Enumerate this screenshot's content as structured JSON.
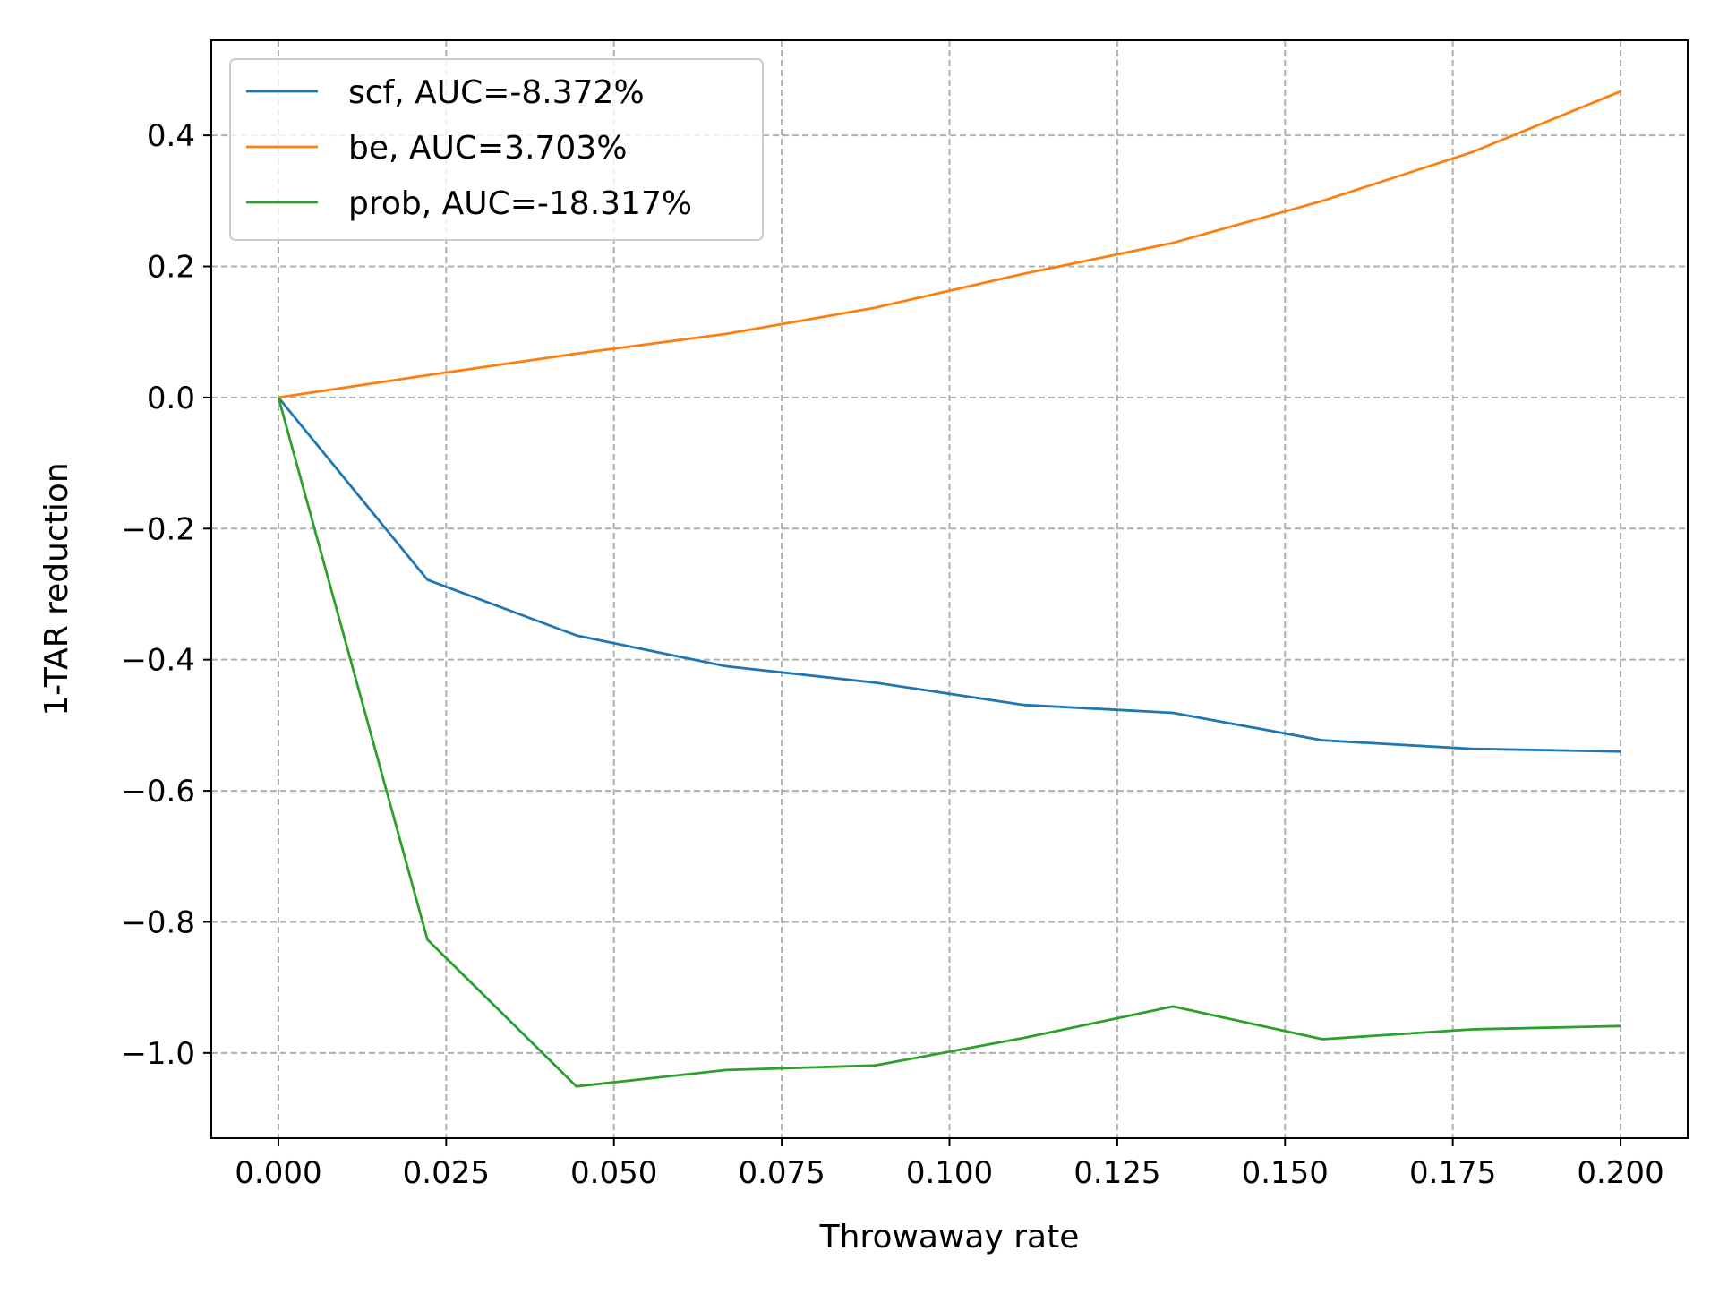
{
  "chart_data": {
    "type": "line",
    "title": "",
    "xlabel": "Throwaway rate",
    "ylabel": "1-TAR reduction",
    "xlim": [
      -0.01,
      0.21
    ],
    "ylim": [
      -1.13,
      0.545
    ],
    "xticks": [
      0.0,
      0.025,
      0.05,
      0.075,
      0.1,
      0.125,
      0.15,
      0.175,
      0.2
    ],
    "xtick_labels": [
      "0.000",
      "0.025",
      "0.050",
      "0.075",
      "0.100",
      "0.125",
      "0.150",
      "0.175",
      "0.200"
    ],
    "yticks": [
      -1.0,
      -0.8,
      -0.6,
      -0.4,
      -0.2,
      0.0,
      0.2,
      0.4
    ],
    "ytick_labels": [
      "−1.0",
      "−0.8",
      "−0.6",
      "−0.4",
      "−0.2",
      "0.0",
      "0.2",
      "0.4"
    ],
    "grid": true,
    "legend_position": "top-left",
    "x": [
      0.0,
      0.0222,
      0.0444,
      0.0667,
      0.0889,
      0.1111,
      0.1333,
      0.1556,
      0.1778,
      0.2
    ],
    "series": [
      {
        "name": "scf, AUC=-8.372%",
        "color": "#1f77b4",
        "values": [
          0.0,
          -0.278,
          -0.363,
          -0.41,
          -0.435,
          -0.469,
          -0.481,
          -0.523,
          -0.536,
          -0.54
        ]
      },
      {
        "name": "be, AUC=3.703%",
        "color": "#ff7f0e",
        "values": [
          0.0,
          0.034,
          0.067,
          0.097,
          0.137,
          0.189,
          0.236,
          0.3,
          0.374,
          0.467
        ]
      },
      {
        "name": "prob, AUC=-18.317%",
        "color": "#2ca02c",
        "values": [
          0.0,
          -0.827,
          -1.051,
          -1.026,
          -1.019,
          -0.977,
          -0.929,
          -0.979,
          -0.964,
          -0.959
        ]
      }
    ]
  }
}
